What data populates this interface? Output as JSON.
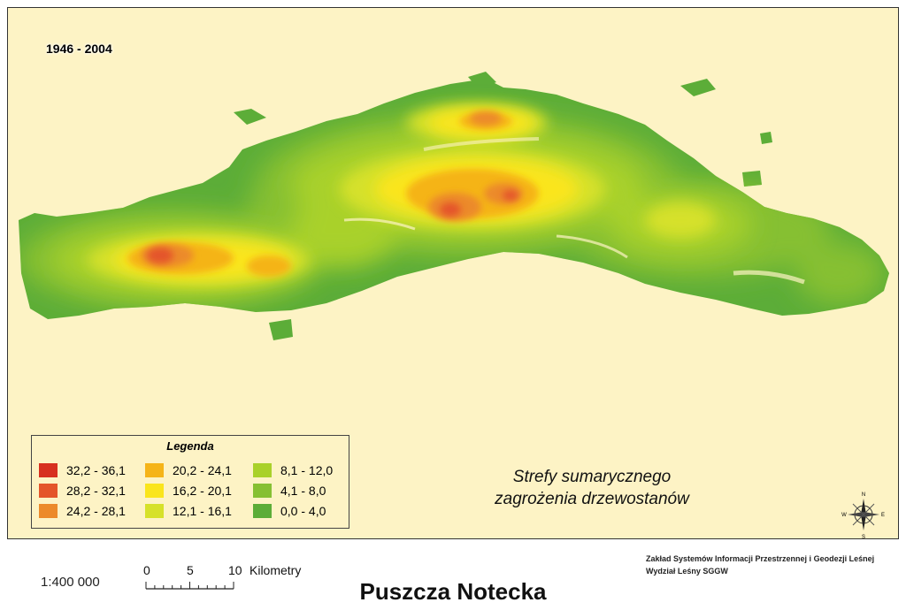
{
  "map": {
    "period": "1946 - 2004",
    "caption_line1": "Strefy sumarycznego",
    "caption_line2": "zagrożenia drzewostanów",
    "north_labels": {
      "n": "N",
      "s": "S",
      "e": "E",
      "w": "W"
    }
  },
  "legend": {
    "title": "Legenda",
    "classes": [
      {
        "label": "32,2 - 36,1",
        "color": "#d7301f"
      },
      {
        "label": "28,2 - 32,1",
        "color": "#e4552a"
      },
      {
        "label": "24,2 - 28,1",
        "color": "#ec8a2a"
      },
      {
        "label": "20,2 - 24,1",
        "color": "#f5b418"
      },
      {
        "label": "16,2 - 20,1",
        "color": "#fae51c"
      },
      {
        "label": "12,1 - 16,1",
        "color": "#d6e12a"
      },
      {
        "label": "8,1 - 12,0",
        "color": "#a9d12a"
      },
      {
        "label": "4,1 - 8,0",
        "color": "#86c033"
      },
      {
        "label": "0,0 - 4,0",
        "color": "#5cad38"
      }
    ]
  },
  "scale": {
    "ratio": "1:400 000",
    "ticks": [
      "0",
      "5",
      "10"
    ],
    "unit": "Kilometry"
  },
  "credit": {
    "line1": "Zakład Systemów Informacji Przestrzennej i Geodezji Leśnej",
    "line2": "Wydział Leśny SGGW"
  },
  "title": "Puszcza Notecka"
}
